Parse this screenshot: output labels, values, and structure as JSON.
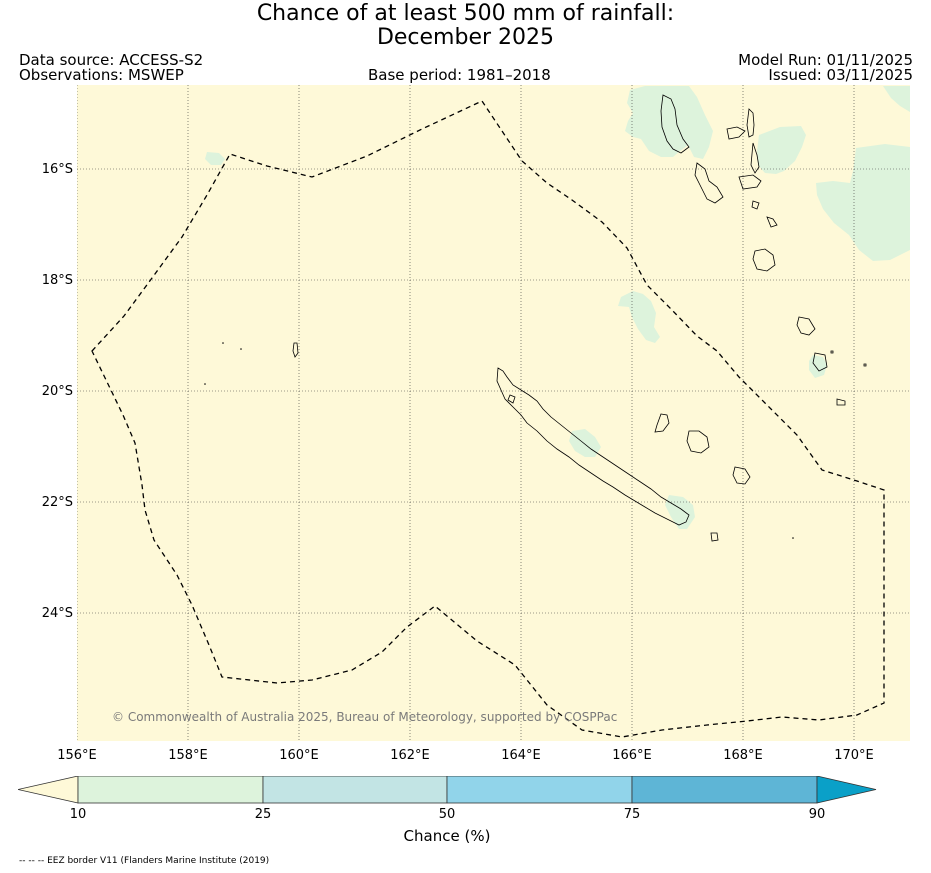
{
  "title": {
    "line1": "Chance of at least 500 mm of rainfall:",
    "line2": "December 2025"
  },
  "header": {
    "data_source": "Data source: ACCESS-S2",
    "observations": "Observations: MSWEP",
    "base_period": "Base period: 1981–2018",
    "model_run": "Model Run: 01/11/2025",
    "issued": "Issued: 03/11/2025"
  },
  "axes": {
    "lat_labels": [
      "16°S",
      "18°S",
      "20°S",
      "22°S",
      "24°S"
    ],
    "lon_labels": [
      "156°E",
      "158°E",
      "160°E",
      "162°E",
      "164°E",
      "166°E",
      "168°E",
      "170°E"
    ]
  },
  "map": {
    "copyright": "© Commonwealth of Australia 2025, Bureau of Meteorology, supported by COSPPac",
    "background_color": "#fef9d8",
    "light_green": "#ddf3dc",
    "coast_color": "#000000",
    "eez_color": "#000000"
  },
  "colorbar": {
    "ticks": [
      "10",
      "25",
      "50",
      "75",
      "90"
    ],
    "label": "Chance (%)",
    "colors": [
      "#fef9d8",
      "#ddf3dc",
      "#c2e4e4",
      "#91d4ea",
      "#5eb5d6",
      "#0aa0c8"
    ]
  },
  "footnote": "-- -- -- EEZ border V11 (Flanders Marine Institute (2019)"
}
